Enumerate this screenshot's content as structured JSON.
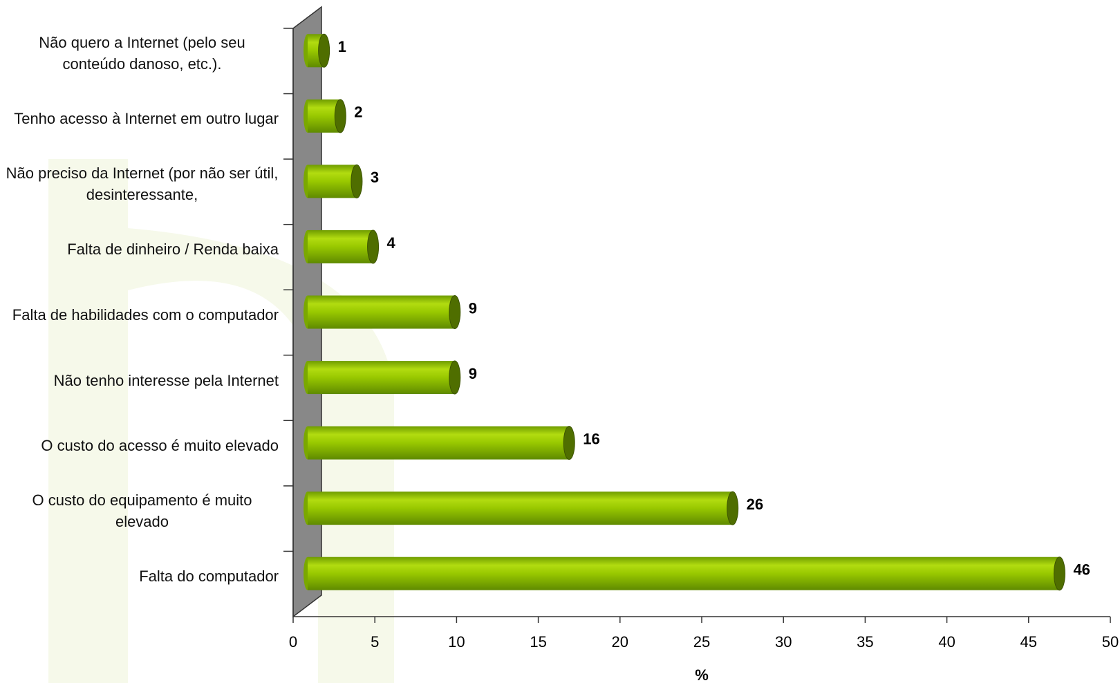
{
  "chart_data": {
    "type": "bar",
    "orientation": "horizontal",
    "categories": [
      "Não quero a Internet (pelo seu conteúdo danoso, etc.).",
      "Tenho acesso à Internet em outro lugar",
      "Não preciso da Internet (por não ser útil, desinteressante,",
      "Falta de dinheiro / Renda baixa",
      "Falta de habilidades com o computador",
      "Não tenho interesse pela Internet",
      "O custo do acesso é muito elevado",
      "O custo do equipamento é muito elevado",
      "Falta do computador"
    ],
    "values": [
      1,
      2,
      3,
      4,
      9,
      9,
      16,
      26,
      46
    ],
    "color": "#8cc000",
    "xlabel": "%",
    "xlim": [
      0,
      50
    ],
    "xticks": [
      0,
      5,
      10,
      15,
      20,
      25,
      30,
      35,
      40,
      45,
      50
    ]
  }
}
